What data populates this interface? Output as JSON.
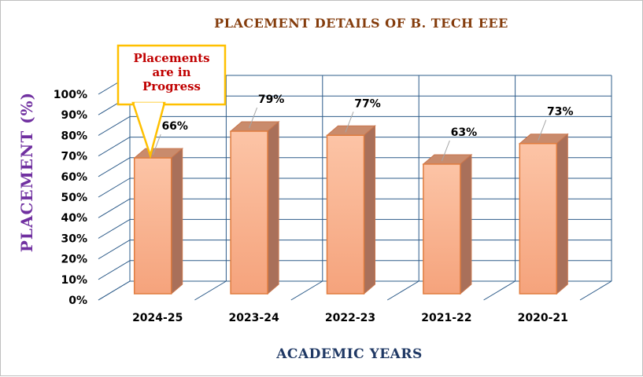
{
  "chart_data": {
    "type": "bar",
    "title": "PLACEMENT DETAILS OF B. TECH EEE",
    "xlabel": "ACADEMIC  YEARS",
    "ylabel": "PLACEMENT (%)",
    "categories": [
      "2024-25",
      "2023-24",
      "2022-23",
      "2021-22",
      "2020-21"
    ],
    "values": [
      66,
      79,
      77,
      63,
      73
    ],
    "data_labels": [
      "66%",
      "79%",
      "77%",
      "63%",
      "73%"
    ],
    "ylim": [
      0,
      100
    ],
    "yticks": [
      "0%",
      "10%",
      "20%",
      "30%",
      "40%",
      "50%",
      "60%",
      "70%",
      "80%",
      "90%",
      "100%"
    ],
    "grid": true,
    "style": "3d-column",
    "bar_color": "#f8b48c",
    "callout": {
      "lines": [
        "Placements",
        "are in",
        "Progress"
      ],
      "target_category": "2024-25",
      "border_color": "#ffc000",
      "text_color": "#c00000"
    }
  }
}
